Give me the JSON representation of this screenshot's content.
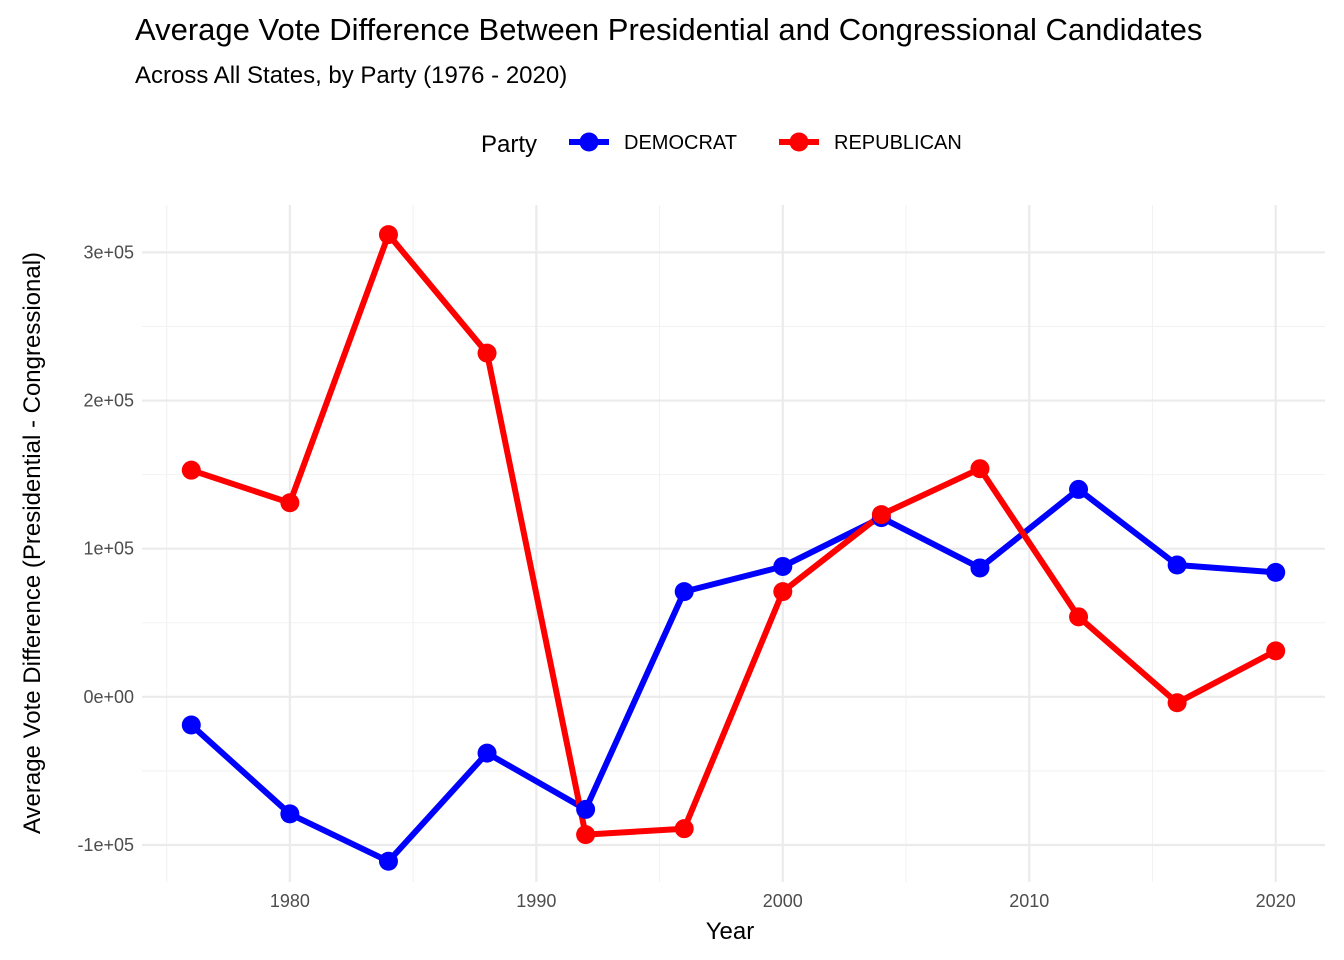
{
  "chart_data": {
    "type": "line",
    "title": "Average Vote Difference Between Presidential and Congressional Candidates",
    "subtitle": "Across All States, by Party (1976 - 2020)",
    "xlabel": "Year",
    "ylabel": "Average Vote Difference (Presidential - Congressional)",
    "legend_title": "Party",
    "legend_position": "top",
    "grid": true,
    "xlim": [
      1974,
      2022
    ],
    "ylim": [
      -125000,
      332000
    ],
    "x_ticks": [
      1980,
      1990,
      2000,
      2010,
      2020
    ],
    "x_tick_labels": [
      "1980",
      "1990",
      "2000",
      "2010",
      "2020"
    ],
    "x_minor_ticks": [
      1975,
      1985,
      1995,
      2005,
      2015
    ],
    "y_ticks": [
      -100000,
      0,
      100000,
      200000,
      300000
    ],
    "y_tick_labels": [
      "-1e+05",
      "0e+00",
      "1e+05",
      "2e+05",
      "3e+05"
    ],
    "y_minor_ticks": [
      -50000,
      50000,
      150000,
      250000
    ],
    "x": [
      1976,
      1980,
      1984,
      1988,
      1992,
      1996,
      2000,
      2004,
      2008,
      2012,
      2016,
      2020
    ],
    "series": [
      {
        "name": "DEMOCRAT",
        "color": "#0000ff",
        "values": [
          -19000,
          -79000,
          -111000,
          -38000,
          -76000,
          71000,
          88000,
          121000,
          87000,
          140000,
          89000,
          84000
        ]
      },
      {
        "name": "REPUBLICAN",
        "color": "#ff0000",
        "values": [
          153000,
          131000,
          312000,
          232000,
          -93000,
          -89000,
          71000,
          123000,
          154000,
          54000,
          -4000,
          31000
        ]
      }
    ]
  }
}
